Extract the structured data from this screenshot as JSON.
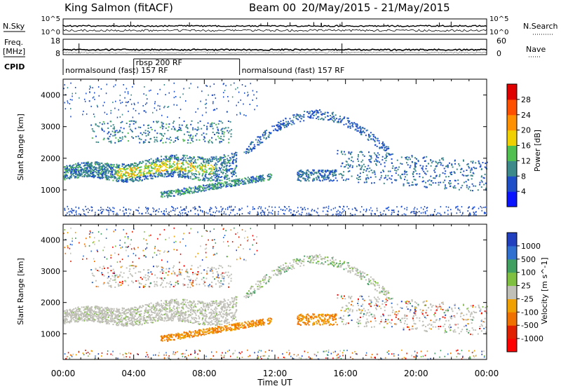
{
  "header": {
    "station": "King Salmon (fitACF)",
    "beam": "Beam 00",
    "date_range": "20/May/2015 - 21/May/2015"
  },
  "strip_nsky": {
    "left_label": "N.Sky",
    "right_label": "N.Search",
    "left_ticks": [
      "10^5",
      "10^0"
    ],
    "right_ticks": [
      "10^5",
      "10^0"
    ]
  },
  "strip_freq": {
    "left_label_1": "Freq.",
    "left_label_2": "[MHz]",
    "right_label": "Nave",
    "left_ticks": [
      "18",
      "8"
    ],
    "right_ticks": [
      "60",
      "0"
    ]
  },
  "cpid": {
    "label": "CPID",
    "segments": [
      {
        "start_hour": 0.0,
        "end_hour": 4.0,
        "text": "normalsound (fast) 157 RF"
      },
      {
        "start_hour": 4.0,
        "end_hour": 10.0,
        "text": "rbsp 200 RF"
      },
      {
        "start_hour": 10.0,
        "end_hour": 24.0,
        "text": "normalsound (fast) 157 RF"
      }
    ]
  },
  "chart_data": [
    {
      "type": "heatmap",
      "title": "",
      "ylabel": "Slant Range [km]",
      "xlabel": "",
      "xlim": [
        0,
        24
      ],
      "ylim": [
        180,
        4500
      ],
      "yticks": [
        1000,
        2000,
        3000,
        4000
      ],
      "colorbar": {
        "label": "Power [dB]",
        "ticks": [
          "4",
          "8",
          "12",
          "16",
          "20",
          "24",
          "28"
        ],
        "colors": [
          "#0a14ff",
          "#1f4fc8",
          "#3d8a8a",
          "#50c050",
          "#f0d000",
          "#ff9000",
          "#ff5000",
          "#e00000"
        ]
      },
      "regions": [
        {
          "name": "band",
          "x": [
            0.0,
            9.8
          ],
          "y_center": 1650,
          "y_half": 230,
          "level": 12
        },
        {
          "name": "arc",
          "x": [
            10.2,
            18.5
          ],
          "y_center": 3000,
          "level": 6
        },
        {
          "name": "upper-return",
          "x": [
            15.5,
            24.0
          ],
          "y_center": 1800,
          "level": 8
        },
        {
          "name": "ground-scatter-low",
          "x": [
            0.0,
            24.0
          ],
          "y_center": 350,
          "level": 4
        }
      ]
    },
    {
      "type": "heatmap",
      "title": "",
      "ylabel": "Slant Range [km]",
      "xlabel": "Time UT",
      "xlim": [
        0,
        24
      ],
      "ylim": [
        180,
        4500
      ],
      "yticks": [
        1000,
        2000,
        3000,
        4000
      ],
      "xtick_labels": [
        "00:00",
        "04:00",
        "08:00",
        "12:00",
        "16:00",
        "20:00",
        "00:00"
      ],
      "colorbar": {
        "label": "Velocity [m s^-1]",
        "ticks": [
          "1000",
          "500",
          "100",
          "25",
          "-25",
          "-100",
          "-500",
          "-1000"
        ],
        "colors": [
          "#2040c0",
          "#3070d0",
          "#40a060",
          "#80c040",
          "#c0c0b8",
          "#f0a000",
          "#f07000",
          "#e02000",
          "#ff0000"
        ]
      },
      "regions": [
        {
          "name": "gray-band",
          "x": [
            0.0,
            9.8
          ],
          "y_center": 1600,
          "velocity": 0
        },
        {
          "name": "orange-band",
          "x": [
            5.5,
            11.8
          ],
          "y_center": 1050,
          "velocity": -150
        },
        {
          "name": "orange-blob",
          "x": [
            13.2,
            15.5
          ],
          "y_center": 1450,
          "velocity": -150
        }
      ]
    }
  ]
}
